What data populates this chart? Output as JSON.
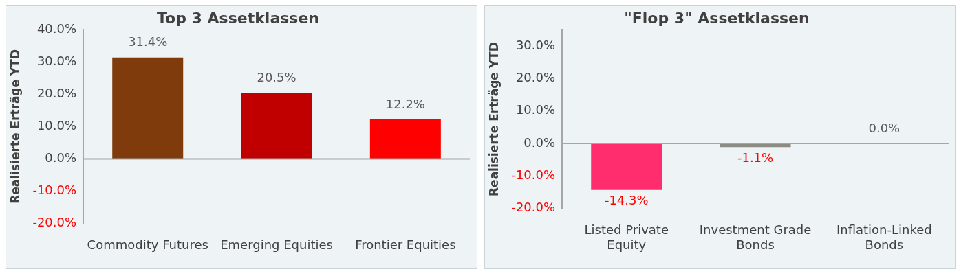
{
  "chart_data": [
    {
      "type": "bar",
      "title": "Top 3 Assetklassen",
      "ylabel": "Realisierte Erträge YTD",
      "categories": [
        "Commodity Futures",
        "Emerging Equities",
        "Frontier Equities"
      ],
      "values": [
        31.4,
        20.5,
        12.2
      ],
      "colors": [
        "#7f3b0c",
        "#c00000",
        "#ff0000"
      ],
      "value_labels": [
        "31.4%",
        "20.5%",
        "12.2%"
      ],
      "ylim": [
        -20,
        40
      ],
      "yticks": [
        {
          "value": -20,
          "label": "-20.0%"
        },
        {
          "value": -10,
          "label": "-10.0%"
        },
        {
          "value": 0,
          "label": "0.0%"
        },
        {
          "value": 10,
          "label": "10.0%"
        },
        {
          "value": 20,
          "label": "20.0%"
        },
        {
          "value": 30,
          "label": "30.0%"
        },
        {
          "value": 40,
          "label": "40.0%"
        }
      ],
      "legend": false
    },
    {
      "type": "bar",
      "title": "\"Flop 3\" Assetklassen",
      "ylabel": "Realisierte Erträge YTD",
      "categories": [
        "Listed Private Equity",
        "Investment Grade Bonds",
        "Inflation-Linked Bonds"
      ],
      "values": [
        -14.3,
        -1.1,
        0.0
      ],
      "colors": [
        "#ff2d6e",
        "#8c8c84",
        "#8c8c84"
      ],
      "value_labels": [
        "-14.3%",
        "-1.1%",
        "0.0%"
      ],
      "ylim": [
        -20,
        35
      ],
      "yticks": [
        {
          "value": -20,
          "label": "-20.0%"
        },
        {
          "value": -10,
          "label": "-10.0%"
        },
        {
          "value": 0,
          "label": "0.0%"
        },
        {
          "value": 10,
          "label": "10.0%"
        },
        {
          "value": 20,
          "label": "20.0%"
        },
        {
          "value": 30,
          "label": "30.0%"
        }
      ],
      "legend": false
    }
  ]
}
